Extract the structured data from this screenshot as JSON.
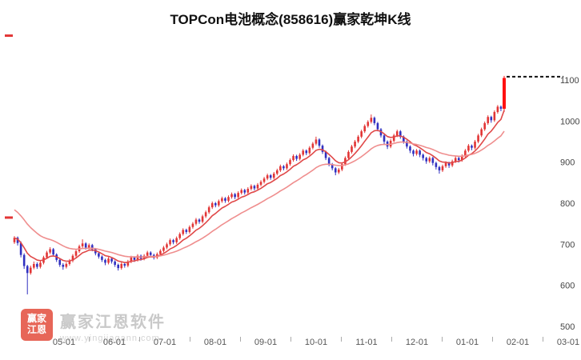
{
  "colors": {
    "brand_red": "#e2402f",
    "watermark_text": "#c9c9c9",
    "watermark_url_text": "#d4d4d4"
  },
  "watermark": {
    "brand": "赢家江恩软件",
    "url": "www.yingjiagann.com",
    "logo_text_1": "赢家",
    "logo_text_2": "江恩"
  },
  "chart_data": {
    "type": "candlestick",
    "title": "TOPCon电池概念(858616)赢家乾坤K线",
    "y_axis": {
      "ticks": [
        500,
        600,
        700,
        800,
        900,
        1000,
        1100
      ],
      "min": 500,
      "max": 1150
    },
    "x_axis": {
      "labels": [
        "05-01",
        "06-01",
        "07-01",
        "08-01",
        "09-01",
        "10-01",
        "11-01",
        "12-01",
        "01-01",
        "02-01",
        "03-01"
      ]
    },
    "colors": {
      "up": "#e23535",
      "down": "#3030c0",
      "last_candle": "#ff1111",
      "axis_text": "#444444",
      "x_axis_text": "#555555",
      "dashed_line": "#111111"
    },
    "moving_averages": [
      {
        "name": "ma-fast",
        "alpha": 0.22,
        "seed": 715,
        "color": "#e04848"
      },
      {
        "name": "ma-slow",
        "alpha": 0.08,
        "seed": 790,
        "color": "#ef8e8e"
      }
    ],
    "annotation": {
      "dashed_line_price": 1108,
      "left_tick_prices": [
        1208,
        765
      ]
    },
    "candles": [
      [
        705,
        720,
        701,
        716
      ],
      [
        716,
        719,
        697,
        703
      ],
      [
        703,
        707,
        668,
        674
      ],
      [
        674,
        678,
        640,
        647
      ],
      [
        647,
        650,
        578,
        630
      ],
      [
        630,
        648,
        626,
        643
      ],
      [
        643,
        658,
        639,
        652
      ],
      [
        652,
        656,
        640,
        645
      ],
      [
        645,
        660,
        641,
        655
      ],
      [
        655,
        672,
        651,
        668
      ],
      [
        668,
        684,
        664,
        680
      ],
      [
        680,
        693,
        676,
        688
      ],
      [
        688,
        691,
        670,
        675
      ],
      [
        675,
        678,
        657,
        662
      ],
      [
        662,
        665,
        645,
        650
      ],
      [
        650,
        654,
        638,
        645
      ],
      [
        645,
        656,
        641,
        652
      ],
      [
        652,
        664,
        648,
        660
      ],
      [
        660,
        676,
        656,
        672
      ],
      [
        672,
        687,
        668,
        683
      ],
      [
        683,
        699,
        679,
        695
      ],
      [
        695,
        712,
        691,
        702
      ],
      [
        702,
        705,
        687,
        692
      ],
      [
        692,
        702,
        688,
        698
      ],
      [
        698,
        701,
        683,
        688
      ],
      [
        688,
        691,
        673,
        678
      ],
      [
        678,
        681,
        665,
        670
      ],
      [
        670,
        673,
        657,
        662
      ],
      [
        662,
        665,
        649,
        655
      ],
      [
        655,
        669,
        651,
        665
      ],
      [
        665,
        668,
        653,
        658
      ],
      [
        658,
        661,
        645,
        650
      ],
      [
        650,
        653,
        636,
        642
      ],
      [
        642,
        656,
        638,
        652
      ],
      [
        652,
        655,
        643,
        648
      ],
      [
        648,
        662,
        644,
        658
      ],
      [
        658,
        672,
        654,
        668
      ],
      [
        668,
        671,
        657,
        662
      ],
      [
        662,
        676,
        658,
        672
      ],
      [
        672,
        675,
        660,
        665
      ],
      [
        665,
        676,
        661,
        672
      ],
      [
        672,
        684,
        668,
        680
      ],
      [
        680,
        683,
        669,
        674
      ],
      [
        674,
        677,
        663,
        668
      ],
      [
        668,
        680,
        664,
        676
      ],
      [
        676,
        688,
        672,
        684
      ],
      [
        684,
        696,
        680,
        692
      ],
      [
        692,
        704,
        688,
        700
      ],
      [
        700,
        714,
        696,
        710
      ],
      [
        710,
        713,
        700,
        705
      ],
      [
        705,
        719,
        701,
        715
      ],
      [
        715,
        729,
        711,
        725
      ],
      [
        725,
        739,
        721,
        735
      ],
      [
        735,
        738,
        725,
        730
      ],
      [
        730,
        746,
        726,
        742
      ],
      [
        742,
        754,
        738,
        750
      ],
      [
        750,
        764,
        746,
        760
      ],
      [
        760,
        763,
        750,
        755
      ],
      [
        755,
        772,
        751,
        768
      ],
      [
        768,
        782,
        764,
        778
      ],
      [
        778,
        794,
        774,
        790
      ],
      [
        790,
        804,
        786,
        800
      ],
      [
        800,
        803,
        790,
        795
      ],
      [
        795,
        809,
        791,
        805
      ],
      [
        805,
        816,
        801,
        812
      ],
      [
        812,
        815,
        801,
        806
      ],
      [
        806,
        819,
        802,
        815
      ],
      [
        815,
        826,
        811,
        822
      ],
      [
        822,
        825,
        810,
        815
      ],
      [
        815,
        829,
        811,
        825
      ],
      [
        825,
        836,
        821,
        832
      ],
      [
        832,
        835,
        821,
        826
      ],
      [
        826,
        839,
        822,
        835
      ],
      [
        835,
        846,
        831,
        842
      ],
      [
        842,
        845,
        831,
        836
      ],
      [
        836,
        849,
        832,
        845
      ],
      [
        845,
        856,
        841,
        852
      ],
      [
        852,
        864,
        848,
        860
      ],
      [
        860,
        872,
        856,
        868
      ],
      [
        868,
        871,
        857,
        862
      ],
      [
        862,
        876,
        858,
        872
      ],
      [
        872,
        884,
        868,
        880
      ],
      [
        880,
        894,
        876,
        890
      ],
      [
        890,
        893,
        880,
        885
      ],
      [
        885,
        899,
        881,
        895
      ],
      [
        895,
        909,
        891,
        905
      ],
      [
        905,
        919,
        901,
        915
      ],
      [
        915,
        918,
        903,
        908
      ],
      [
        908,
        922,
        904,
        918
      ],
      [
        918,
        932,
        914,
        928
      ],
      [
        928,
        931,
        917,
        922
      ],
      [
        922,
        939,
        918,
        935
      ],
      [
        935,
        949,
        931,
        945
      ],
      [
        945,
        962,
        941,
        955
      ],
      [
        955,
        958,
        935,
        940
      ],
      [
        940,
        943,
        920,
        925
      ],
      [
        925,
        928,
        905,
        910
      ],
      [
        910,
        913,
        890,
        895
      ],
      [
        895,
        898,
        880,
        885
      ],
      [
        885,
        888,
        868,
        875
      ],
      [
        875,
        886,
        871,
        882
      ],
      [
        882,
        899,
        878,
        895
      ],
      [
        895,
        914,
        891,
        910
      ],
      [
        910,
        929,
        906,
        925
      ],
      [
        925,
        942,
        921,
        938
      ],
      [
        938,
        954,
        934,
        950
      ],
      [
        950,
        966,
        946,
        962
      ],
      [
        962,
        979,
        958,
        975
      ],
      [
        975,
        992,
        971,
        988
      ],
      [
        988,
        1002,
        984,
        998
      ],
      [
        998,
        1016,
        994,
        1008
      ],
      [
        1008,
        1011,
        990,
        995
      ],
      [
        995,
        998,
        975,
        980
      ],
      [
        980,
        983,
        960,
        965
      ],
      [
        965,
        968,
        944,
        950
      ],
      [
        950,
        953,
        932,
        938
      ],
      [
        938,
        956,
        934,
        952
      ],
      [
        952,
        969,
        948,
        965
      ],
      [
        965,
        979,
        961,
        975
      ],
      [
        975,
        978,
        957,
        962
      ],
      [
        962,
        965,
        945,
        950
      ],
      [
        950,
        953,
        933,
        938
      ],
      [
        938,
        941,
        922,
        928
      ],
      [
        928,
        931,
        914,
        920
      ],
      [
        920,
        932,
        916,
        928
      ],
      [
        928,
        931,
        912,
        918
      ],
      [
        918,
        921,
        904,
        910
      ],
      [
        910,
        913,
        896,
        902
      ],
      [
        902,
        914,
        898,
        910
      ],
      [
        910,
        913,
        892,
        898
      ],
      [
        898,
        901,
        882,
        888
      ],
      [
        888,
        891,
        872,
        880
      ],
      [
        880,
        894,
        876,
        890
      ],
      [
        890,
        902,
        886,
        898
      ],
      [
        898,
        901,
        886,
        892
      ],
      [
        892,
        906,
        888,
        902
      ],
      [
        902,
        914,
        898,
        910
      ],
      [
        910,
        913,
        899,
        905
      ],
      [
        905,
        919,
        901,
        915
      ],
      [
        915,
        932,
        911,
        928
      ],
      [
        928,
        944,
        924,
        940
      ],
      [
        940,
        943,
        929,
        935
      ],
      [
        935,
        954,
        931,
        950
      ],
      [
        950,
        969,
        946,
        965
      ],
      [
        965,
        984,
        961,
        980
      ],
      [
        980,
        999,
        976,
        995
      ],
      [
        995,
        1014,
        991,
        1010
      ],
      [
        1010,
        1013,
        996,
        1002
      ],
      [
        1002,
        1026,
        998,
        1022
      ],
      [
        1022,
        1039,
        1018,
        1035
      ],
      [
        1035,
        1038,
        1024,
        1030
      ],
      [
        1030,
        1110,
        1022,
        1105
      ]
    ]
  }
}
